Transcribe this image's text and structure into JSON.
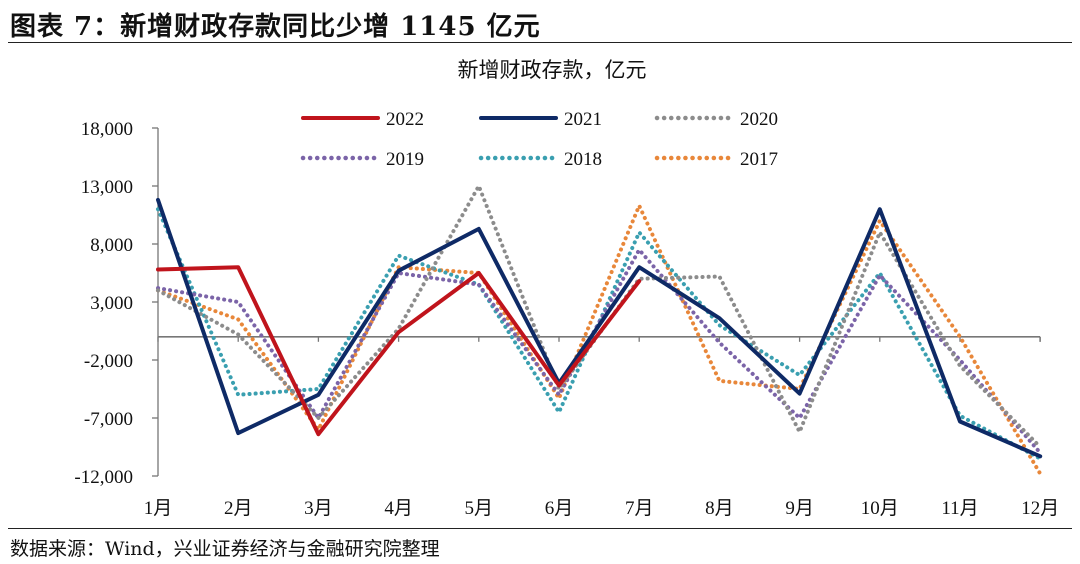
{
  "figure": {
    "title": "图表 7：新增财政存款同比少增 1145 亿元",
    "source": "数据来源：Wind，兴业证券经济与金融研究院整理"
  },
  "chart_data": {
    "type": "line",
    "title": "新增财政存款，亿元",
    "xlabel": "",
    "ylabel": "",
    "categories": [
      "1月",
      "2月",
      "3月",
      "4月",
      "5月",
      "6月",
      "7月",
      "8月",
      "9月",
      "10月",
      "11月",
      "12月"
    ],
    "y_ticks": [
      "18,000",
      "13,000",
      "8,000",
      "3,000",
      "-2,000",
      "-7,000",
      "-12,000"
    ],
    "y_tick_values": [
      18000,
      13000,
      8000,
      3000,
      -2000,
      -7000,
      -12000
    ],
    "ylim": [
      -12000,
      18000
    ],
    "grid": false,
    "legend_position": "top",
    "series": [
      {
        "name": "2022",
        "color": "#c0141c",
        "style": "solid",
        "values": [
          5800,
          6000,
          -8400,
          400,
          5500,
          -4200,
          4800,
          null,
          null,
          null,
          null,
          null
        ]
      },
      {
        "name": "2021",
        "color": "#0e2a66",
        "style": "solid",
        "values": [
          11800,
          -8300,
          -5000,
          5700,
          9300,
          -4000,
          6000,
          1600,
          -4900,
          11000,
          -7300,
          -10300
        ]
      },
      {
        "name": "2020",
        "color": "#8c8c8c",
        "style": "dotted",
        "values": [
          4000,
          200,
          -7000,
          700,
          13000,
          -4500,
          5000,
          5200,
          -8200,
          9000,
          -2500,
          -9500
        ]
      },
      {
        "name": "2019",
        "color": "#7b64a8",
        "style": "dotted",
        "values": [
          4200,
          3000,
          -7000,
          5500,
          4500,
          -5000,
          7500,
          -500,
          -7000,
          5300,
          -2000,
          -10000
        ]
      },
      {
        "name": "2018",
        "color": "#3a9fb0",
        "style": "dotted",
        "values": [
          11000,
          -5000,
          -4500,
          7000,
          4500,
          -6500,
          9000,
          1000,
          -3300,
          5500,
          -6800,
          -10500
        ]
      },
      {
        "name": "2017",
        "color": "#e8873a",
        "style": "dotted",
        "values": [
          4000,
          1500,
          -8000,
          6000,
          5500,
          -5300,
          11300,
          -3800,
          -4500,
          10000,
          0,
          -11800
        ]
      }
    ]
  }
}
